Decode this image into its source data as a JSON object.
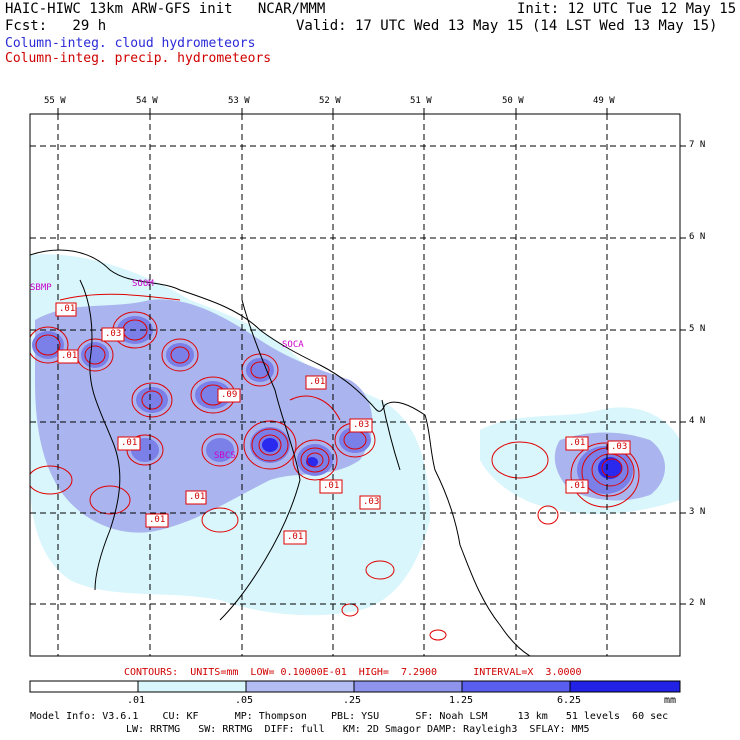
{
  "header": {
    "line1_left": "HAIC-HIWC 13km ARW-GFS init   NCAR/MMM",
    "line1_right": "Init: 12 UTC Tue 12 May 15",
    "line2_left": "Fcst:   29 h",
    "line2_right": "Valid: 17 UTC Wed 13 May 15 (14 LST Wed 13 May 15)",
    "legend_cloud": "Column-integ. cloud hydrometeors",
    "legend_precip": "Column-integ. precip. hydrometeors"
  },
  "map": {
    "lon_labels": [
      "55 W",
      "54 W",
      "53 W",
      "52 W",
      "51 W",
      "50 W",
      "49 W"
    ],
    "lat_labels": [
      "7 N",
      "6 N",
      "5 N",
      "4 N",
      "3 N",
      "2 N"
    ],
    "station_labels": [
      "SBMP",
      "SOOM",
      "SOCA",
      "SBCS"
    ],
    "contour_labels": [
      ".01",
      ".03",
      ".01",
      ".09",
      ".01",
      ".01",
      ".03",
      ".01",
      ".01",
      ".03",
      ".01",
      ".01",
      ".01",
      ".01",
      ".03"
    ],
    "colors": {
      "cloud_light": "#d8f6fb",
      "cloud_mid": "#aab4ee",
      "cloud_strong": "#7a80e8",
      "cloud_max": "#2222e6",
      "contour": "#e00000",
      "label": "#cc00cc"
    }
  },
  "footer": {
    "contours_line": "CONTOURS:  UNITS=mm  LOW= 0.10000E-01  HIGH=  7.2900      INTERVAL=X  3.0000",
    "colorbar_ticks": [
      ".01",
      ".05",
      ".25",
      "1.25",
      "6.25"
    ],
    "colorbar_unit": "mm",
    "colorbar_colors": [
      "#ffffff",
      "#d8f6fb",
      "#b4bdf3",
      "#8e94ec",
      "#5a5ef0",
      "#2a2aee",
      "#1010e6"
    ],
    "model_info_1": "Model Info: V3.6.1    CU: KF      MP: Thompson    PBL: YSU      SF: Noah LSM     13 km   51 levels  60 sec",
    "model_info_2": "LW: RRTMG   SW: RRTMG  DIFF: full   KM: 2D Smagor DAMP: Rayleigh3  SFLAY: MM5"
  }
}
